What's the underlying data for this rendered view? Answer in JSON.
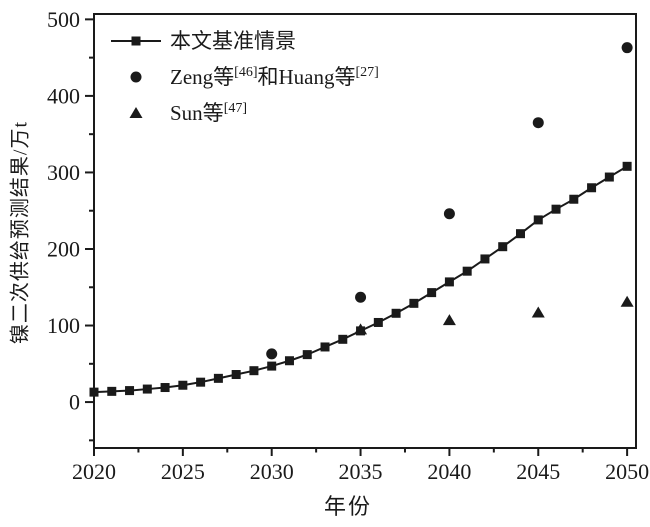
{
  "figure": {
    "background": "#ffffff",
    "ink": "#1a1a1a"
  },
  "chart_data": {
    "type": "line",
    "title": "",
    "xlabel": "年份",
    "ylabel": "镍二次供给预测结果/万t",
    "xlim": [
      2020,
      2050.5
    ],
    "ylim": [
      -60,
      507
    ],
    "x_major_ticks": [
      2020,
      2025,
      2030,
      2035,
      2040,
      2045,
      2050
    ],
    "x_minor_ticks": [
      2022.5,
      2027.5,
      2032.5,
      2037.5,
      2042.5,
      2047.5
    ],
    "y_major_ticks": [
      0,
      100,
      200,
      300,
      400,
      500
    ],
    "y_minor_ticks": [
      -50,
      50,
      150,
      250,
      350,
      450
    ],
    "grid": false,
    "legend_position": "inside-top-left",
    "series": [
      {
        "name": "baseline-scenario",
        "label_segments": [
          {
            "t": "本文基准情景",
            "sup": false
          }
        ],
        "marker": "square",
        "line": true,
        "color": "#1a1a1a",
        "x": [
          2020,
          2021,
          2022,
          2023,
          2024,
          2025,
          2026,
          2027,
          2028,
          2029,
          2030,
          2031,
          2032,
          2033,
          2034,
          2035,
          2036,
          2037,
          2038,
          2039,
          2040,
          2041,
          2042,
          2043,
          2044,
          2045,
          2046,
          2047,
          2048,
          2049,
          2050
        ],
        "y": [
          13,
          14,
          15,
          17,
          19,
          22,
          26,
          31,
          36,
          41,
          47,
          54,
          62,
          72,
          82,
          93,
          104,
          116,
          129,
          143,
          157,
          171,
          187,
          203,
          220,
          238,
          252,
          265,
          280,
          294,
          308
        ]
      },
      {
        "name": "zeng-huang",
        "label_segments": [
          {
            "t": "Zeng等",
            "sup": false
          },
          {
            "t": "[46]",
            "sup": true
          },
          {
            "t": "和Huang等",
            "sup": false
          },
          {
            "t": "[27]",
            "sup": true
          }
        ],
        "marker": "circle",
        "line": false,
        "color": "#1a1a1a",
        "x": [
          2030,
          2035,
          2040,
          2045,
          2050
        ],
        "y": [
          63,
          137,
          246,
          365,
          463
        ]
      },
      {
        "name": "sun",
        "label_segments": [
          {
            "t": "Sun等",
            "sup": false
          },
          {
            "t": "[47]",
            "sup": true
          }
        ],
        "marker": "triangle",
        "line": false,
        "color": "#1a1a1a",
        "x": [
          2035,
          2040,
          2045,
          2050
        ],
        "y": [
          95,
          107,
          117,
          131
        ]
      }
    ]
  }
}
